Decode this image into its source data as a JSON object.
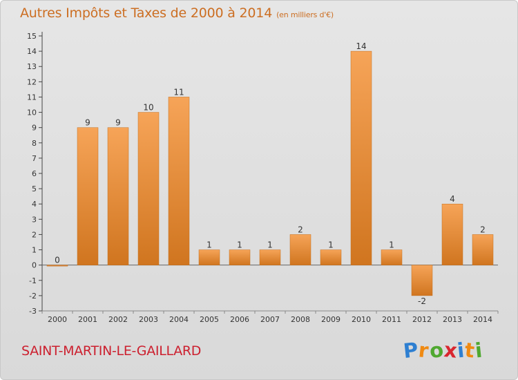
{
  "title": "Autres Impôts et Taxes de 2000 à 2014",
  "unit": "(en milliers d'€)",
  "commune": "SAINT-MARTIN-LE-GAILLARD",
  "logo": {
    "letters": [
      "P",
      "r",
      "o",
      "x",
      "i",
      "t",
      "i"
    ],
    "colors": [
      "#2e7fd1",
      "#f08a12",
      "#4fa830",
      "#d9262f",
      "#2e7fd1",
      "#f08a12",
      "#4fa830"
    ]
  },
  "colors": {
    "bar_light": "#f6a458",
    "bar_dark": "#d0751f",
    "title": "#cc6e22",
    "commune": "#cc1f2e"
  },
  "chart_data": {
    "type": "bar",
    "categories": [
      "2000",
      "2001",
      "2002",
      "2003",
      "2004",
      "2005",
      "2006",
      "2007",
      "2008",
      "2009",
      "2010",
      "2011",
      "2012",
      "2013",
      "2014"
    ],
    "values": [
      0,
      9,
      9,
      10,
      11,
      1,
      1,
      1,
      2,
      1,
      14,
      1,
      -2,
      4,
      2
    ],
    "ylim": [
      -3,
      15
    ],
    "yticks": [
      -3,
      -2,
      -1,
      0,
      1,
      2,
      3,
      4,
      5,
      6,
      7,
      8,
      9,
      10,
      11,
      12,
      13,
      14,
      15
    ],
    "title": "Autres Impôts et Taxes de 2000 à 2014",
    "ylabel": "(en milliers d'€)",
    "xlabel": "",
    "grid": false
  }
}
